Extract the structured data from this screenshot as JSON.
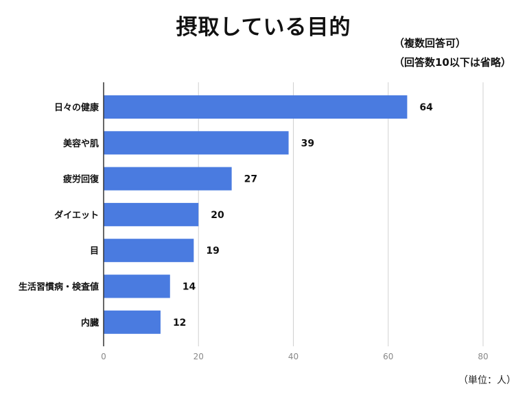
{
  "header": {
    "title": "摂取している目的",
    "note1": "（複数回答可）",
    "note2": "（回答数10以下は省略）"
  },
  "footer": {
    "unit": "（単位：人）"
  },
  "chart_data": {
    "type": "bar",
    "orientation": "horizontal",
    "title": "摂取している目的",
    "categories": [
      "日々の健康",
      "美容や肌",
      "疲労回復",
      "ダイエット",
      "目",
      "生活習慣病・検査値",
      "内臓"
    ],
    "values": [
      64,
      39,
      27,
      20,
      19,
      14,
      12
    ],
    "xlim": [
      0,
      80
    ],
    "xticks": [
      0,
      20,
      40,
      60,
      80
    ],
    "grid": true,
    "bar_color": "#4a7be0",
    "data_labels": true
  }
}
